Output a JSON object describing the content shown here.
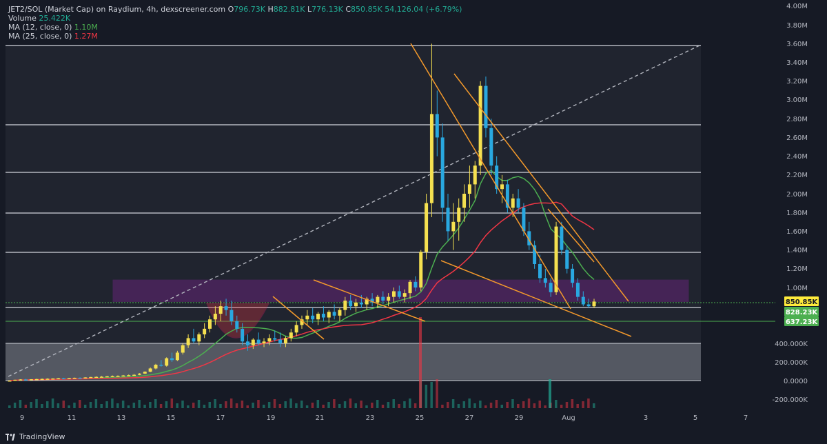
{
  "legend": {
    "symbol": "JET2/SOL (Market Cap) on Raydium, 4h, dexscreener.com",
    "o_label": "O",
    "o": "796.73K",
    "h_label": "H",
    "h": "882.81K",
    "l_label": "L",
    "l": "776.13K",
    "c_label": "C",
    "c": "850.85K",
    "change": "54,126.04 (+6.79%)",
    "volume_label": "Volume",
    "volume": "25.422K",
    "ma12_label": "MA (12, close, 0)",
    "ma12": "1.10M",
    "ma25_label": "MA (25, close, 0)",
    "ma25": "1.27M"
  },
  "brand": "TradingView",
  "colors": {
    "background": "#161a25",
    "up": "#f5e050",
    "down": "#29a8e0",
    "ma12": "#4caf50",
    "ma25": "#f23645",
    "trendline": "#f59a2b",
    "zone_purple": "#9c27b0",
    "hline_green": "#4caf50",
    "price_label": "#ffeb3b",
    "support_label": "#4caf50"
  },
  "chart_data": {
    "type": "candlestick",
    "y_scale": "linear",
    "y_ticks": [
      "4.00M",
      "3.80M",
      "3.60M",
      "3.40M",
      "3.20M",
      "3.00M",
      "2.80M",
      "2.60M",
      "2.40M",
      "2.20M",
      "2.00M",
      "1.80M",
      "1.60M",
      "1.40M",
      "1.20M",
      "1.00M",
      "400.000K",
      "200.000K",
      "0.0000",
      "-200.000K"
    ],
    "x_ticks": [
      "9",
      "11",
      "13",
      "15",
      "17",
      "19",
      "21",
      "23",
      "25",
      "27",
      "29",
      "Aug",
      "3",
      "5",
      "7"
    ],
    "price_labels": [
      {
        "text": "850.85K",
        "value": 850850,
        "role": "last-price"
      },
      {
        "text": "828.23K",
        "value": 828230,
        "role": "horizontal-line"
      },
      {
        "text": "637.23K",
        "value": 637230,
        "role": "horizontal-line"
      }
    ],
    "horizontal_levels": [
      3600000,
      2750000,
      2200000,
      1800000,
      1380000,
      828230,
      637230,
      400000,
      0
    ],
    "zones": [
      {
        "name": "purple-zone",
        "from": 850000,
        "to": 1080000
      },
      {
        "name": "gray-zone",
        "from": 0,
        "to": 400000
      }
    ],
    "candles_ohlc": [
      [
        0,
        0,
        0,
        0
      ],
      [
        0,
        10000,
        0,
        8000
      ],
      [
        8000,
        15000,
        5000,
        12000
      ],
      [
        12000,
        18000,
        8000,
        10000
      ],
      [
        10000,
        15000,
        6000,
        14000
      ],
      [
        14000,
        20000,
        10000,
        16000
      ],
      [
        16000,
        22000,
        12000,
        18000
      ],
      [
        18000,
        25000,
        14000,
        20000
      ],
      [
        20000,
        24000,
        15000,
        22000
      ],
      [
        22000,
        28000,
        18000,
        25000
      ],
      [
        25000,
        30000,
        20000,
        22000
      ],
      [
        22000,
        28000,
        18000,
        26000
      ],
      [
        26000,
        32000,
        22000,
        30000
      ],
      [
        30000,
        35000,
        25000,
        28000
      ],
      [
        28000,
        36000,
        24000,
        34000
      ],
      [
        34000,
        40000,
        30000,
        38000
      ],
      [
        38000,
        45000,
        34000,
        40000
      ],
      [
        40000,
        48000,
        36000,
        42000
      ],
      [
        42000,
        50000,
        38000,
        46000
      ],
      [
        46000,
        55000,
        42000,
        48000
      ],
      [
        48000,
        56000,
        44000,
        50000
      ],
      [
        50000,
        60000,
        46000,
        55000
      ],
      [
        55000,
        65000,
        50000,
        58000
      ],
      [
        58000,
        70000,
        54000,
        62000
      ],
      [
        62000,
        80000,
        58000,
        75000
      ],
      [
        75000,
        100000,
        70000,
        95000
      ],
      [
        95000,
        140000,
        90000,
        130000
      ],
      [
        130000,
        180000,
        120000,
        170000
      ],
      [
        170000,
        220000,
        150000,
        160000
      ],
      [
        160000,
        250000,
        150000,
        240000
      ],
      [
        240000,
        300000,
        200000,
        220000
      ],
      [
        220000,
        320000,
        210000,
        300000
      ],
      [
        300000,
        400000,
        280000,
        380000
      ],
      [
        380000,
        500000,
        350000,
        460000
      ],
      [
        460000,
        560000,
        400000,
        420000
      ],
      [
        420000,
        520000,
        380000,
        500000
      ],
      [
        500000,
        620000,
        460000,
        560000
      ],
      [
        560000,
        700000,
        520000,
        660000
      ],
      [
        660000,
        800000,
        600000,
        720000
      ],
      [
        720000,
        860000,
        640000,
        800000
      ],
      [
        800000,
        880000,
        700000,
        760000
      ],
      [
        760000,
        860000,
        600000,
        640000
      ],
      [
        640000,
        700000,
        520000,
        560000
      ],
      [
        560000,
        620000,
        380000,
        420000
      ],
      [
        420000,
        500000,
        320000,
        380000
      ],
      [
        380000,
        460000,
        340000,
        440000
      ],
      [
        440000,
        520000,
        380000,
        400000
      ],
      [
        400000,
        460000,
        360000,
        420000
      ],
      [
        420000,
        500000,
        380000,
        460000
      ],
      [
        460000,
        540000,
        420000,
        440000
      ],
      [
        440000,
        520000,
        360000,
        400000
      ],
      [
        400000,
        480000,
        360000,
        460000
      ],
      [
        460000,
        560000,
        420000,
        520000
      ],
      [
        520000,
        640000,
        480000,
        600000
      ],
      [
        600000,
        700000,
        560000,
        660000
      ],
      [
        660000,
        760000,
        600000,
        700000
      ],
      [
        700000,
        780000,
        620000,
        660000
      ],
      [
        660000,
        740000,
        600000,
        720000
      ],
      [
        720000,
        800000,
        640000,
        680000
      ],
      [
        680000,
        760000,
        620000,
        740000
      ],
      [
        740000,
        820000,
        660000,
        700000
      ],
      [
        700000,
        780000,
        640000,
        760000
      ],
      [
        760000,
        900000,
        700000,
        860000
      ],
      [
        860000,
        920000,
        760000,
        800000
      ],
      [
        800000,
        880000,
        740000,
        840000
      ],
      [
        840000,
        920000,
        780000,
        820000
      ],
      [
        820000,
        900000,
        760000,
        880000
      ],
      [
        880000,
        940000,
        800000,
        840000
      ],
      [
        840000,
        920000,
        780000,
        900000
      ],
      [
        900000,
        960000,
        820000,
        860000
      ],
      [
        860000,
        940000,
        800000,
        900000
      ],
      [
        900000,
        1000000,
        840000,
        960000
      ],
      [
        960000,
        1020000,
        880000,
        900000
      ],
      [
        900000,
        980000,
        840000,
        940000
      ],
      [
        940000,
        1080000,
        880000,
        1060000
      ],
      [
        1060000,
        1120000,
        960000,
        1000000
      ],
      [
        1000000,
        1400000,
        960000,
        1380000
      ],
      [
        1380000,
        2000000,
        1300000,
        1900000
      ],
      [
        1900000,
        3600000,
        1750000,
        2850000
      ],
      [
        2850000,
        3100000,
        2400000,
        2600000
      ],
      [
        2600000,
        2750000,
        1700000,
        1850000
      ],
      [
        1850000,
        2000000,
        1500000,
        1600000
      ],
      [
        1600000,
        1900000,
        1400000,
        1700000
      ],
      [
        1700000,
        1950000,
        1500000,
        1850000
      ],
      [
        1850000,
        2100000,
        1700000,
        2000000
      ],
      [
        2000000,
        2300000,
        1850000,
        2100000
      ],
      [
        2100000,
        2350000,
        1950000,
        2300000
      ],
      [
        2300000,
        3200000,
        2200000,
        3150000
      ],
      [
        3150000,
        3250000,
        2600000,
        2700000
      ],
      [
        2700000,
        2800000,
        2200000,
        2300000
      ],
      [
        2300000,
        2400000,
        2000000,
        2050000
      ],
      [
        2050000,
        2200000,
        1900000,
        2100000
      ],
      [
        2100000,
        2150000,
        1800000,
        1850000
      ],
      [
        1850000,
        2000000,
        1750000,
        1950000
      ],
      [
        1950000,
        2050000,
        1800000,
        1850000
      ],
      [
        1850000,
        1900000,
        1550000,
        1600000
      ],
      [
        1600000,
        1700000,
        1400000,
        1450000
      ],
      [
        1450000,
        1500000,
        1200000,
        1250000
      ],
      [
        1250000,
        1350000,
        1050000,
        1100000
      ],
      [
        1100000,
        1200000,
        1000000,
        1050000
      ],
      [
        1050000,
        1100000,
        900000,
        950000
      ],
      [
        950000,
        1700000,
        920000,
        1650000
      ],
      [
        1650000,
        1700000,
        1350000,
        1400000
      ],
      [
        1400000,
        1450000,
        1150000,
        1200000
      ],
      [
        1200000,
        1250000,
        1000000,
        1050000
      ],
      [
        1050000,
        1100000,
        860000,
        900000
      ],
      [
        900000,
        960000,
        800000,
        820000
      ],
      [
        820000,
        880000,
        780000,
        800000
      ],
      [
        800000,
        880000,
        780000,
        850000
      ]
    ],
    "ma12_visible": true,
    "ma25_visible": true,
    "volume_visible": true
  }
}
